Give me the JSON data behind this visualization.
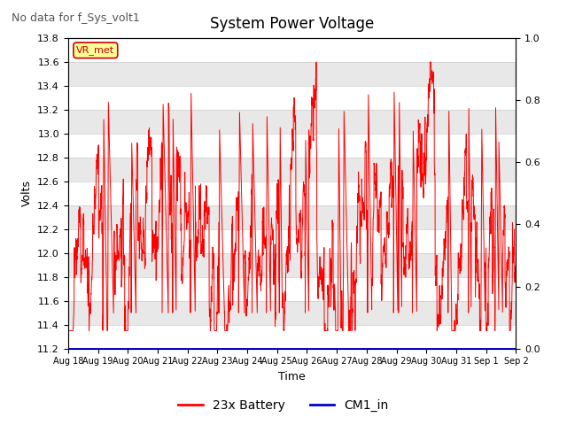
{
  "title": "System Power Voltage",
  "subtitle": "No data for f_Sys_volt1",
  "ylabel_left": "Volts",
  "xlabel": "Time",
  "ylim_left": [
    11.2,
    13.8
  ],
  "ylim_right": [
    0.0,
    1.0
  ],
  "xtick_labels": [
    "Aug 18",
    "Aug 19",
    "Aug 20",
    "Aug 21",
    "Aug 22",
    "Aug 23",
    "Aug 24",
    "Aug 25",
    "Aug 26",
    "Aug 27",
    "Aug 28",
    "Aug 29",
    "Aug 30",
    "Aug 31",
    "Sep 1",
    "Sep 2"
  ],
  "background_color": "#ffffff",
  "band_colors": [
    "#ffffff",
    "#e8e8e8"
  ],
  "grid_color": "#cccccc",
  "line_color_battery": "#ff0000",
  "line_color_cm1": "#0000cc",
  "legend_battery": "23x Battery",
  "legend_cm1": "CM1_in",
  "annotation_text": "VR_met",
  "annotation_color": "#cc0000",
  "annotation_bg": "#ffff99",
  "title_fontsize": 12,
  "label_fontsize": 9,
  "tick_fontsize": 8,
  "subtitle_fontsize": 9
}
